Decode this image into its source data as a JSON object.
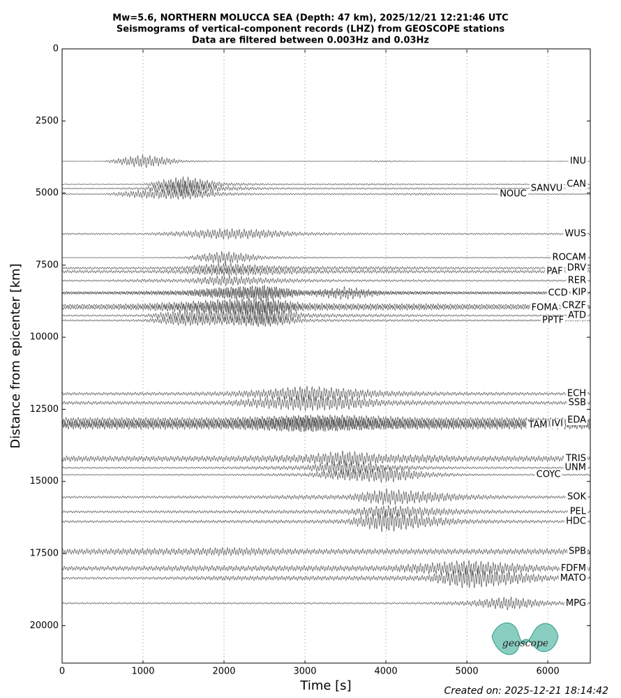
{
  "chart_data": {
    "type": "seismogram",
    "title": [
      "Mw=5.6, NORTHERN MOLUCCA SEA (Depth: 47 km), 2025/12/21 12:21:46 UTC",
      "Seismograms of vertical-component records (LHZ) from GEOSCOPE stations",
      "Data are filtered between 0.003Hz and 0.03Hz"
    ],
    "xlabel": "Time [s]",
    "ylabel": "Distance from epicenter [km]",
    "footer": "Created on: 2025-12-21 18:14:42",
    "logo": "geoscope",
    "xlim": [
      0,
      6525
    ],
    "xticks": [
      0,
      1000,
      2000,
      3000,
      4000,
      5000,
      6000
    ],
    "ylim": [
      0,
      21300
    ],
    "yticks": [
      0,
      2500,
      5000,
      7500,
      10000,
      12500,
      15000,
      17500,
      20000
    ],
    "y_inverted": true,
    "grid": true,
    "color": "#555555",
    "x": [
      0,
      500,
      1000,
      1500,
      2000,
      2500,
      3000,
      3500,
      4000,
      4500,
      5000,
      5500,
      6000,
      6500
    ],
    "series": [
      {
        "name": "INU",
        "distance": 3898,
        "values": [
          5,
          5,
          250,
          40,
          10,
          5,
          10,
          5,
          30,
          5,
          5,
          5,
          5,
          5
        ]
      },
      {
        "name": "CAN",
        "distance": 4697,
        "values": [
          15,
          15,
          20,
          300,
          60,
          30,
          20,
          30,
          30,
          20,
          20,
          20,
          20,
          20
        ]
      },
      {
        "name": "SANVU",
        "distance": 4843,
        "values": [
          20,
          20,
          40,
          300,
          80,
          40,
          30,
          30,
          30,
          30,
          30,
          30,
          30,
          30
        ]
      },
      {
        "name": "NOUC",
        "distance": 5036,
        "values": [
          20,
          20,
          150,
          200,
          60,
          30,
          30,
          30,
          30,
          40,
          20,
          20,
          20,
          20
        ]
      },
      {
        "name": "WUS",
        "distance": 6416,
        "values": [
          30,
          30,
          30,
          100,
          200,
          150,
          60,
          40,
          30,
          30,
          30,
          30,
          30,
          30
        ]
      },
      {
        "name": "ROCAM",
        "distance": 7240,
        "values": [
          10,
          10,
          10,
          30,
          250,
          60,
          30,
          20,
          20,
          20,
          20,
          20,
          20,
          20
        ]
      },
      {
        "name": "DRV",
        "distance": 7603,
        "values": [
          40,
          40,
          40,
          60,
          200,
          100,
          60,
          60,
          60,
          50,
          40,
          40,
          40,
          40
        ]
      },
      {
        "name": "PAF",
        "distance": 7724,
        "values": [
          50,
          50,
          50,
          80,
          150,
          120,
          80,
          60,
          60,
          50,
          50,
          50,
          50,
          50
        ]
      },
      {
        "name": "RER",
        "distance": 8039,
        "values": [
          30,
          30,
          60,
          60,
          200,
          100,
          60,
          40,
          40,
          40,
          30,
          30,
          30,
          30
        ]
      },
      {
        "name": "KIP",
        "distance": 8450,
        "values": [
          40,
          40,
          60,
          80,
          200,
          250,
          80,
          60,
          60,
          50,
          40,
          40,
          40,
          40
        ]
      },
      {
        "name": "CCD",
        "distance": 8475,
        "values": [
          40,
          40,
          60,
          80,
          200,
          300,
          80,
          250,
          60,
          50,
          40,
          40,
          40,
          40
        ]
      },
      {
        "name": "CRZF",
        "distance": 8910,
        "values": [
          60,
          60,
          80,
          150,
          250,
          300,
          100,
          80,
          80,
          80,
          60,
          60,
          60,
          60
        ]
      },
      {
        "name": "FOMA",
        "distance": 8983,
        "values": [
          50,
          50,
          80,
          150,
          250,
          300,
          100,
          80,
          80,
          80,
          60,
          50,
          50,
          50
        ]
      },
      {
        "name": "ATD",
        "distance": 9249,
        "values": [
          30,
          30,
          40,
          200,
          200,
          350,
          80,
          60,
          50,
          40,
          30,
          30,
          30,
          30
        ]
      },
      {
        "name": "PPTF",
        "distance": 9419,
        "values": [
          30,
          30,
          40,
          200,
          150,
          250,
          60,
          40,
          40,
          40,
          30,
          30,
          30,
          30
        ]
      },
      {
        "name": "ECH",
        "distance": 11961,
        "values": [
          50,
          50,
          60,
          60,
          80,
          150,
          300,
          200,
          100,
          80,
          60,
          60,
          50,
          50
        ]
      },
      {
        "name": "SSB",
        "distance": 12276,
        "values": [
          60,
          60,
          60,
          60,
          80,
          200,
          300,
          250,
          100,
          80,
          60,
          60,
          60,
          60
        ]
      },
      {
        "name": "EDA",
        "distance": 12881,
        "values": [
          100,
          100,
          100,
          100,
          100,
          150,
          200,
          200,
          150,
          100,
          100,
          100,
          100,
          100
        ]
      },
      {
        "name": "IVI",
        "distance": 13002,
        "values": [
          120,
          120,
          120,
          120,
          150,
          200,
          300,
          250,
          200,
          150,
          120,
          120,
          120,
          120
        ]
      },
      {
        "name": "TAM",
        "distance": 13051,
        "values": [
          150,
          150,
          150,
          150,
          150,
          200,
          250,
          200,
          150,
          150,
          150,
          150,
          150,
          150
        ]
      },
      {
        "name": "TRIS",
        "distance": 14213,
        "values": [
          100,
          100,
          100,
          100,
          100,
          120,
          150,
          300,
          150,
          150,
          100,
          100,
          100,
          100
        ]
      },
      {
        "name": "UNM",
        "distance": 14528,
        "values": [
          30,
          30,
          30,
          30,
          40,
          60,
          80,
          300,
          100,
          60,
          40,
          40,
          30,
          30
        ]
      },
      {
        "name": "COYC",
        "distance": 14770,
        "values": [
          20,
          20,
          20,
          30,
          30,
          40,
          60,
          200,
          300,
          100,
          40,
          30,
          30,
          30
        ]
      },
      {
        "name": "SOK",
        "distance": 15545,
        "values": [
          40,
          40,
          40,
          50,
          50,
          60,
          80,
          80,
          300,
          200,
          100,
          60,
          50,
          40
        ]
      },
      {
        "name": "PEL",
        "distance": 16053,
        "values": [
          40,
          40,
          40,
          50,
          50,
          60,
          60,
          80,
          250,
          150,
          80,
          60,
          50,
          40
        ]
      },
      {
        "name": "HDC",
        "distance": 16392,
        "values": [
          40,
          40,
          40,
          50,
          50,
          60,
          60,
          80,
          400,
          200,
          80,
          60,
          50,
          40
        ]
      },
      {
        "name": "SPB",
        "distance": 17433,
        "values": [
          100,
          100,
          120,
          120,
          150,
          120,
          100,
          100,
          100,
          100,
          100,
          100,
          100,
          100
        ]
      },
      {
        "name": "FDFM",
        "distance": 18015,
        "values": [
          80,
          80,
          80,
          100,
          100,
          100,
          100,
          100,
          100,
          200,
          300,
          200,
          100,
          80
        ]
      },
      {
        "name": "MATO",
        "distance": 18354,
        "values": [
          40,
          40,
          40,
          60,
          80,
          80,
          80,
          80,
          80,
          100,
          400,
          250,
          100,
          60
        ]
      },
      {
        "name": "MPG",
        "distance": 19225,
        "values": [
          30,
          30,
          30,
          30,
          30,
          30,
          30,
          30,
          30,
          40,
          80,
          250,
          80,
          40
        ]
      }
    ]
  }
}
